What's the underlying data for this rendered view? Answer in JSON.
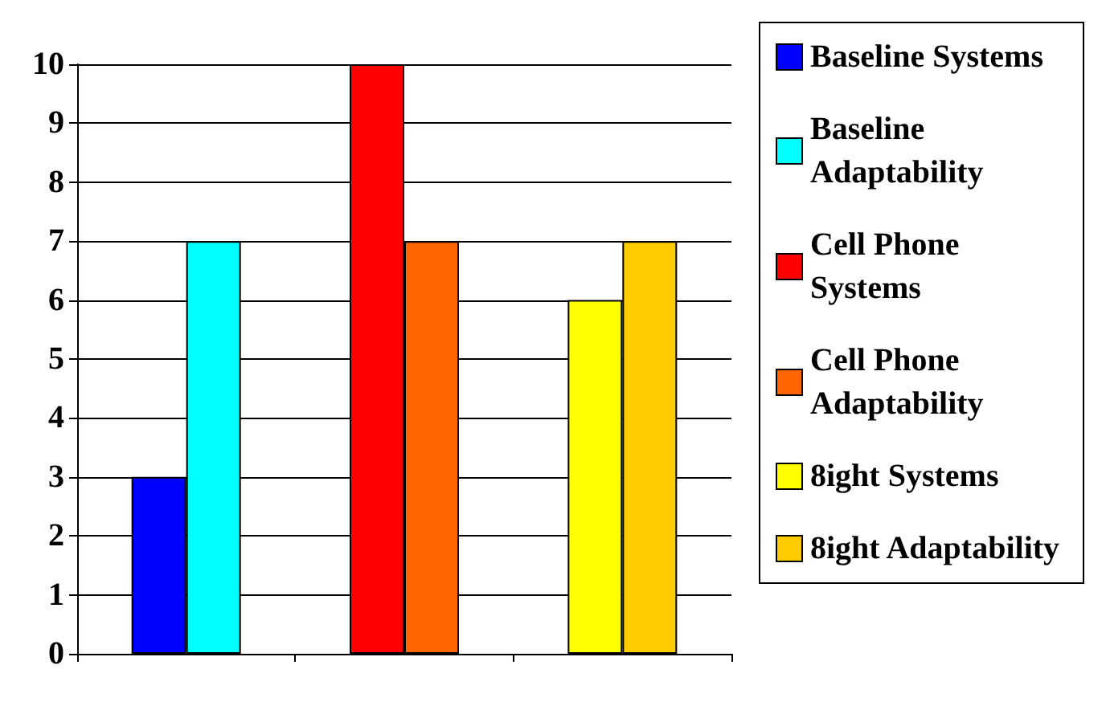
{
  "chart_data": {
    "type": "bar",
    "categories": [
      null,
      null,
      null
    ],
    "series": [
      {
        "name": "Baseline Systems",
        "color": "#0000ff",
        "values": [
          3,
          null,
          null
        ]
      },
      {
        "name": "Baseline Adaptability",
        "color": "#00ffff",
        "values": [
          7,
          null,
          null
        ]
      },
      {
        "name": "Cell Phone Systems",
        "color": "#ff0000",
        "values": [
          null,
          10,
          null
        ]
      },
      {
        "name": "Cell Phone Adaptability",
        "color": "#ff6600",
        "values": [
          null,
          7,
          null
        ]
      },
      {
        "name": "8ight Systems",
        "color": "#ffff00",
        "values": [
          null,
          null,
          6
        ]
      },
      {
        "name": "8ight Adaptability",
        "color": "#ffcc00",
        "values": [
          null,
          null,
          7
        ]
      }
    ],
    "ylim": [
      0,
      10
    ],
    "yticks": [
      0,
      1,
      2,
      3,
      4,
      5,
      6,
      7,
      8,
      9,
      10
    ],
    "grid": "y",
    "legend": "right"
  }
}
